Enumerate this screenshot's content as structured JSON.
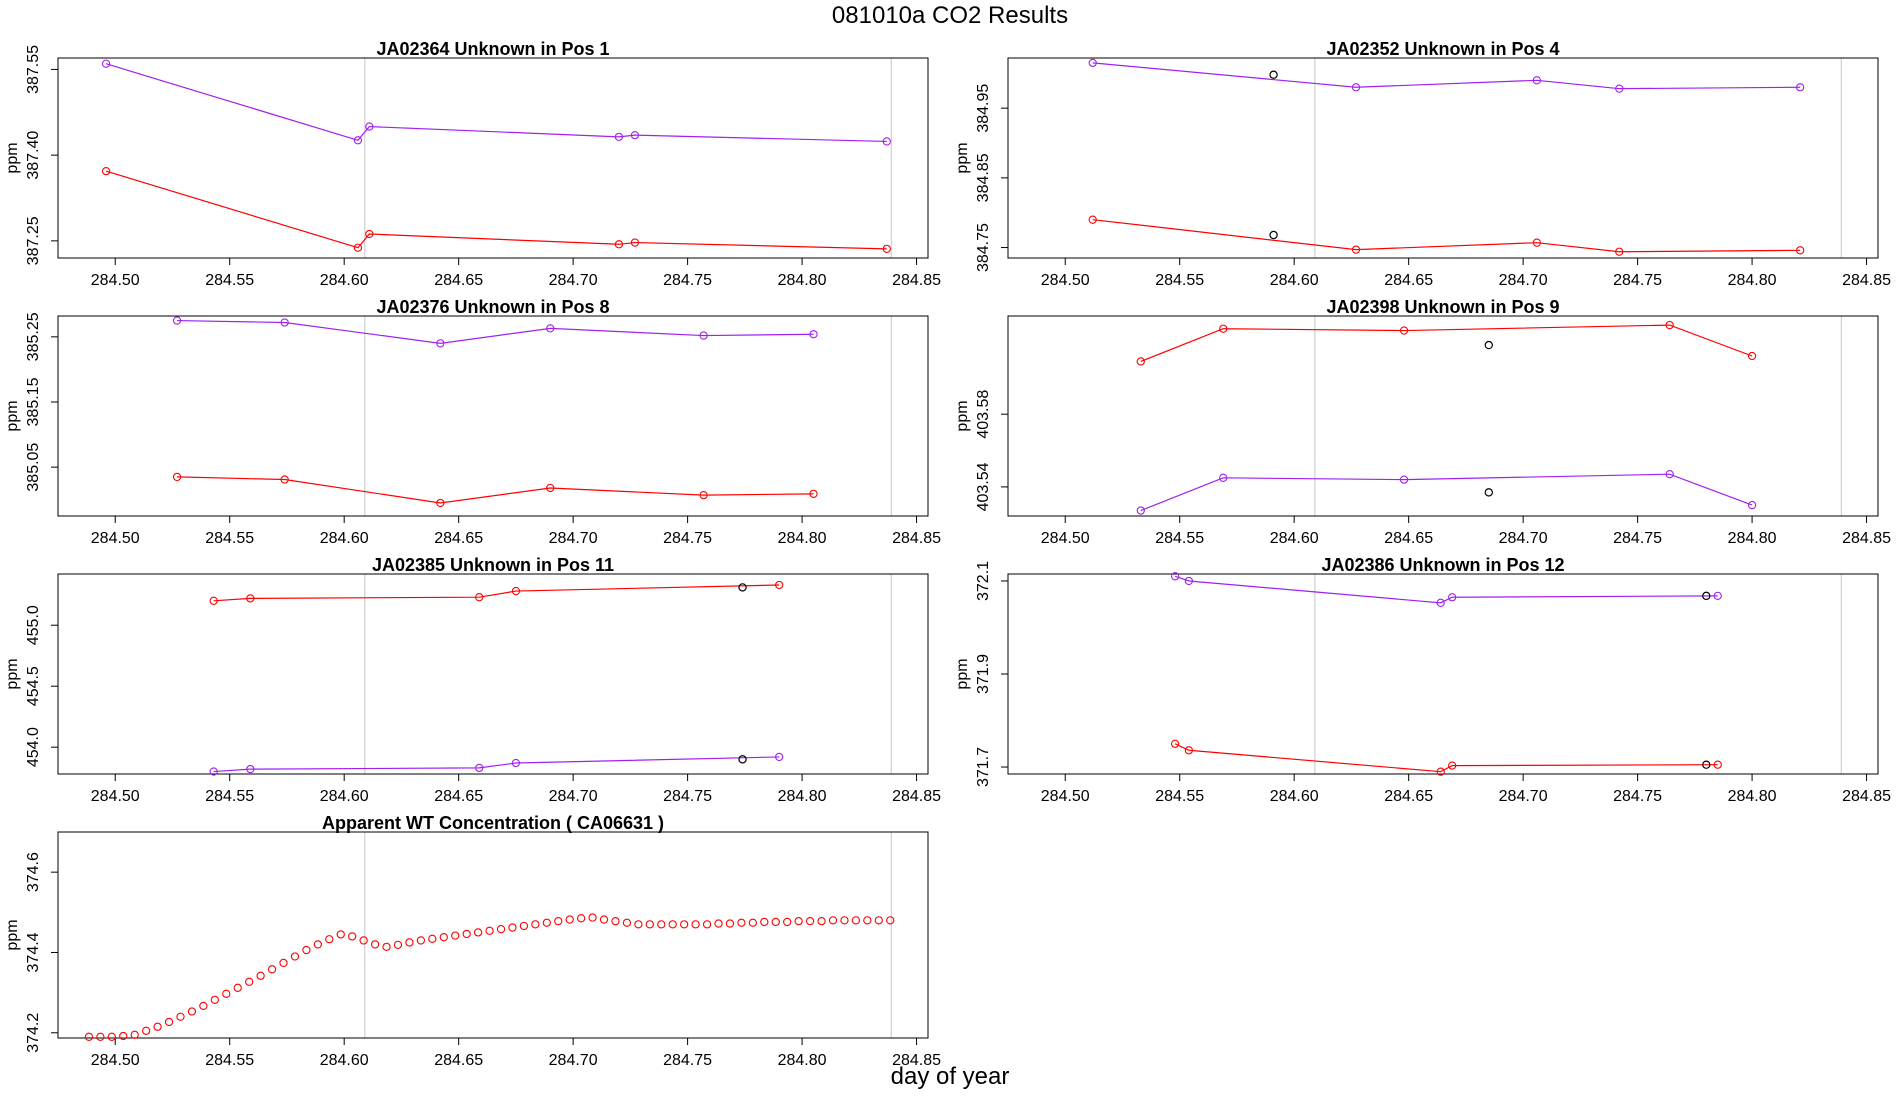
{
  "figure": {
    "title": "081010a  CO2 Results",
    "xlabel": "day of year"
  },
  "colors": {
    "red": "#ff0000",
    "purple": "#a020f0",
    "flag": "#000000",
    "vline": "#d3d3d3"
  },
  "chart_data": [
    {
      "type": "line",
      "title": "JA02364    Unknown in Pos 1",
      "ylabel": "ppm",
      "xlim": [
        284.475,
        284.855
      ],
      "ylim": [
        387.22,
        387.57
      ],
      "xticks": [
        "284.50",
        "284.55",
        "284.60",
        "284.65",
        "284.70",
        "284.75",
        "284.80",
        "284.85"
      ],
      "yticks": [
        "387.25",
        "387.40",
        "387.55"
      ],
      "vlines": [
        284.609,
        284.839
      ],
      "series": [
        {
          "color": "#a020f0",
          "x": [
            284.496,
            284.606,
            284.611,
            284.72,
            284.727,
            284.837
          ],
          "y": [
            387.56,
            387.426,
            387.45,
            387.432,
            387.435,
            387.424
          ]
        },
        {
          "color": "#ff0000",
          "x": [
            284.496,
            284.606,
            284.611,
            284.72,
            284.727,
            284.837
          ],
          "y": [
            387.372,
            387.238,
            387.262,
            387.244,
            387.247,
            387.236
          ]
        }
      ],
      "flags": []
    },
    {
      "type": "line",
      "title": "JA02352    Unknown in Pos 4",
      "ylabel": "ppm",
      "xlim": [
        284.475,
        284.855
      ],
      "ylim": [
        384.735,
        385.022
      ],
      "xticks": [
        "284.50",
        "284.55",
        "284.60",
        "284.65",
        "284.70",
        "284.75",
        "284.80",
        "284.85"
      ],
      "yticks": [
        "384.75",
        "384.85",
        "384.95"
      ],
      "vlines": [
        284.609,
        284.839
      ],
      "series": [
        {
          "color": "#a020f0",
          "x": [
            284.512,
            284.627,
            284.706,
            284.742,
            284.821
          ],
          "y": [
            385.015,
            384.98,
            384.99,
            384.978,
            384.98
          ]
        },
        {
          "color": "#ff0000",
          "x": [
            284.512,
            284.627,
            284.706,
            284.742,
            284.821
          ],
          "y": [
            384.79,
            384.747,
            384.757,
            384.744,
            384.746
          ]
        }
      ],
      "flags": [
        {
          "x": 284.591,
          "y": 384.998
        },
        {
          "x": 284.591,
          "y": 384.768
        }
      ]
    },
    {
      "type": "line",
      "title": "JA02376    Unknown in Pos 8",
      "ylabel": "ppm",
      "xlim": [
        284.475,
        284.855
      ],
      "ylim": [
        384.975,
        385.282
      ],
      "xticks": [
        "284.50",
        "284.55",
        "284.60",
        "284.65",
        "284.70",
        "284.75",
        "284.80",
        "284.85"
      ],
      "yticks": [
        "385.05",
        "385.15",
        "385.25"
      ],
      "vlines": [
        284.609,
        284.839
      ],
      "series": [
        {
          "color": "#a020f0",
          "x": [
            284.527,
            284.574,
            284.642,
            284.69,
            284.757,
            284.805
          ],
          "y": [
            385.275,
            385.272,
            385.24,
            385.263,
            385.252,
            385.254
          ]
        },
        {
          "color": "#ff0000",
          "x": [
            284.527,
            284.574,
            284.642,
            284.69,
            284.757,
            284.805
          ],
          "y": [
            385.035,
            385.031,
            384.995,
            385.018,
            385.007,
            385.009
          ]
        }
      ],
      "flags": []
    },
    {
      "type": "line",
      "title": "JA02398    Unknown in Pos 9",
      "ylabel": "ppm",
      "xlim": [
        284.475,
        284.855
      ],
      "ylim": [
        403.524,
        403.634
      ],
      "xticks": [
        "284.50",
        "284.55",
        "284.60",
        "284.65",
        "284.70",
        "284.75",
        "284.80",
        "284.85"
      ],
      "yticks": [
        "403.54",
        "403.58"
      ],
      "vlines": [
        284.609,
        284.839
      ],
      "series": [
        {
          "color": "#ff0000",
          "x": [
            284.533,
            284.569,
            284.648,
            284.764,
            284.8
          ],
          "y": [
            403.609,
            403.627,
            403.626,
            403.629,
            403.612
          ]
        },
        {
          "color": "#a020f0",
          "x": [
            284.533,
            284.569,
            284.648,
            284.764,
            284.8
          ],
          "y": [
            403.527,
            403.545,
            403.544,
            403.547,
            403.53
          ]
        }
      ],
      "flags": [
        {
          "x": 284.685,
          "y": 403.618
        },
        {
          "x": 284.685,
          "y": 403.537
        }
      ]
    },
    {
      "type": "line",
      "title": "JA02385    Unknown in Pos 11",
      "ylabel": "ppm",
      "xlim": [
        284.475,
        284.855
      ],
      "ylim": [
        453.78,
        455.42
      ],
      "xticks": [
        "284.50",
        "284.55",
        "284.60",
        "284.65",
        "284.70",
        "284.75",
        "284.80",
        "284.85"
      ],
      "yticks": [
        "454.0",
        "454.5",
        "455.0"
      ],
      "vlines": [
        284.609,
        284.839
      ],
      "series": [
        {
          "color": "#ff0000",
          "x": [
            284.543,
            284.559,
            284.659,
            284.675,
            284.79
          ],
          "y": [
            455.2,
            455.22,
            455.23,
            455.28,
            455.33
          ]
        },
        {
          "color": "#a020f0",
          "x": [
            284.543,
            284.559,
            284.659,
            284.675,
            284.79
          ],
          "y": [
            453.8,
            453.82,
            453.83,
            453.87,
            453.92
          ]
        }
      ],
      "flags": [
        {
          "x": 284.774,
          "y": 455.31
        },
        {
          "x": 284.774,
          "y": 453.9
        }
      ]
    },
    {
      "type": "line",
      "title": "JA02386    Unknown in Pos 12",
      "ylabel": "ppm",
      "xlim": [
        284.475,
        284.855
      ],
      "ylim": [
        371.685,
        372.115
      ],
      "xticks": [
        "284.50",
        "284.55",
        "284.60",
        "284.65",
        "284.70",
        "284.75",
        "284.80",
        "284.85"
      ],
      "yticks": [
        "371.7",
        "371.9",
        "372.1"
      ],
      "vlines": [
        284.609,
        284.839
      ],
      "series": [
        {
          "color": "#a020f0",
          "x": [
            284.548,
            284.554,
            284.664,
            284.669,
            284.785
          ],
          "y": [
            372.11,
            372.1,
            372.053,
            372.065,
            372.068
          ]
        },
        {
          "color": "#ff0000",
          "x": [
            284.548,
            284.554,
            284.664,
            284.669,
            284.785
          ],
          "y": [
            371.75,
            371.736,
            371.69,
            371.703,
            371.705
          ]
        }
      ],
      "flags": [
        {
          "x": 284.78,
          "y": 372.068
        },
        {
          "x": 284.78,
          "y": 371.705
        }
      ]
    },
    {
      "type": "scatter",
      "title": "Apparent WT Concentration ( CA06631 )",
      "ylabel": "ppm",
      "xlim": [
        284.475,
        284.855
      ],
      "ylim": [
        374.187,
        374.7
      ],
      "xticks": [
        "284.50",
        "284.55",
        "284.60",
        "284.65",
        "284.70",
        "284.75",
        "284.80",
        "284.85"
      ],
      "yticks": [
        "374.2",
        "374.4",
        "374.6"
      ],
      "vlines": [
        284.609,
        284.839
      ],
      "series": [
        {
          "color": "#ff0000",
          "x": [
            284.4885,
            284.4935,
            284.4985,
            284.5035,
            284.5085,
            284.5135,
            284.5185,
            284.5235,
            284.5285,
            284.5335,
            284.5385,
            284.5435,
            284.5485,
            284.5535,
            284.5585,
            284.5635,
            284.5685,
            284.5735,
            284.5785,
            284.5835,
            284.5885,
            284.5935,
            284.5985,
            284.6035,
            284.6085,
            284.6135,
            284.6185,
            284.6235,
            284.6285,
            284.6335,
            284.6385,
            284.6435,
            284.6485,
            284.6535,
            284.6585,
            284.6635,
            284.6685,
            284.6735,
            284.6785,
            284.6835,
            284.6885,
            284.6935,
            284.6985,
            284.7035,
            284.7085,
            284.7135,
            284.7185,
            284.7235,
            284.7285,
            284.7335,
            284.7385,
            284.7435,
            284.7485,
            284.7535,
            284.7585,
            284.7635,
            284.7685,
            284.7735,
            284.7785,
            284.7835,
            284.7885,
            284.7935,
            284.7985,
            284.8035,
            284.8085,
            284.8135,
            284.8185,
            284.8235,
            284.8285,
            284.8335,
            284.8385
          ],
          "y": [
            374.19,
            374.19,
            374.19,
            374.192,
            374.195,
            374.205,
            374.215,
            374.227,
            374.24,
            374.253,
            374.267,
            374.282,
            374.297,
            374.312,
            374.327,
            374.342,
            374.358,
            374.374,
            374.39,
            374.406,
            374.42,
            374.433,
            374.445,
            374.44,
            374.43,
            374.42,
            374.414,
            374.419,
            374.425,
            374.43,
            374.434,
            374.438,
            374.442,
            374.446,
            374.45,
            374.454,
            374.458,
            374.462,
            374.466,
            374.47,
            374.474,
            374.478,
            374.482,
            374.485,
            374.487,
            374.482,
            374.478,
            374.474,
            374.47,
            374.47,
            374.47,
            374.47,
            374.47,
            374.47,
            374.47,
            374.472,
            374.472,
            374.474,
            374.474,
            374.476,
            374.476,
            374.476,
            374.478,
            374.478,
            374.478,
            374.48,
            374.48,
            374.48,
            374.48,
            374.48,
            374.48
          ]
        }
      ],
      "flags": []
    }
  ]
}
